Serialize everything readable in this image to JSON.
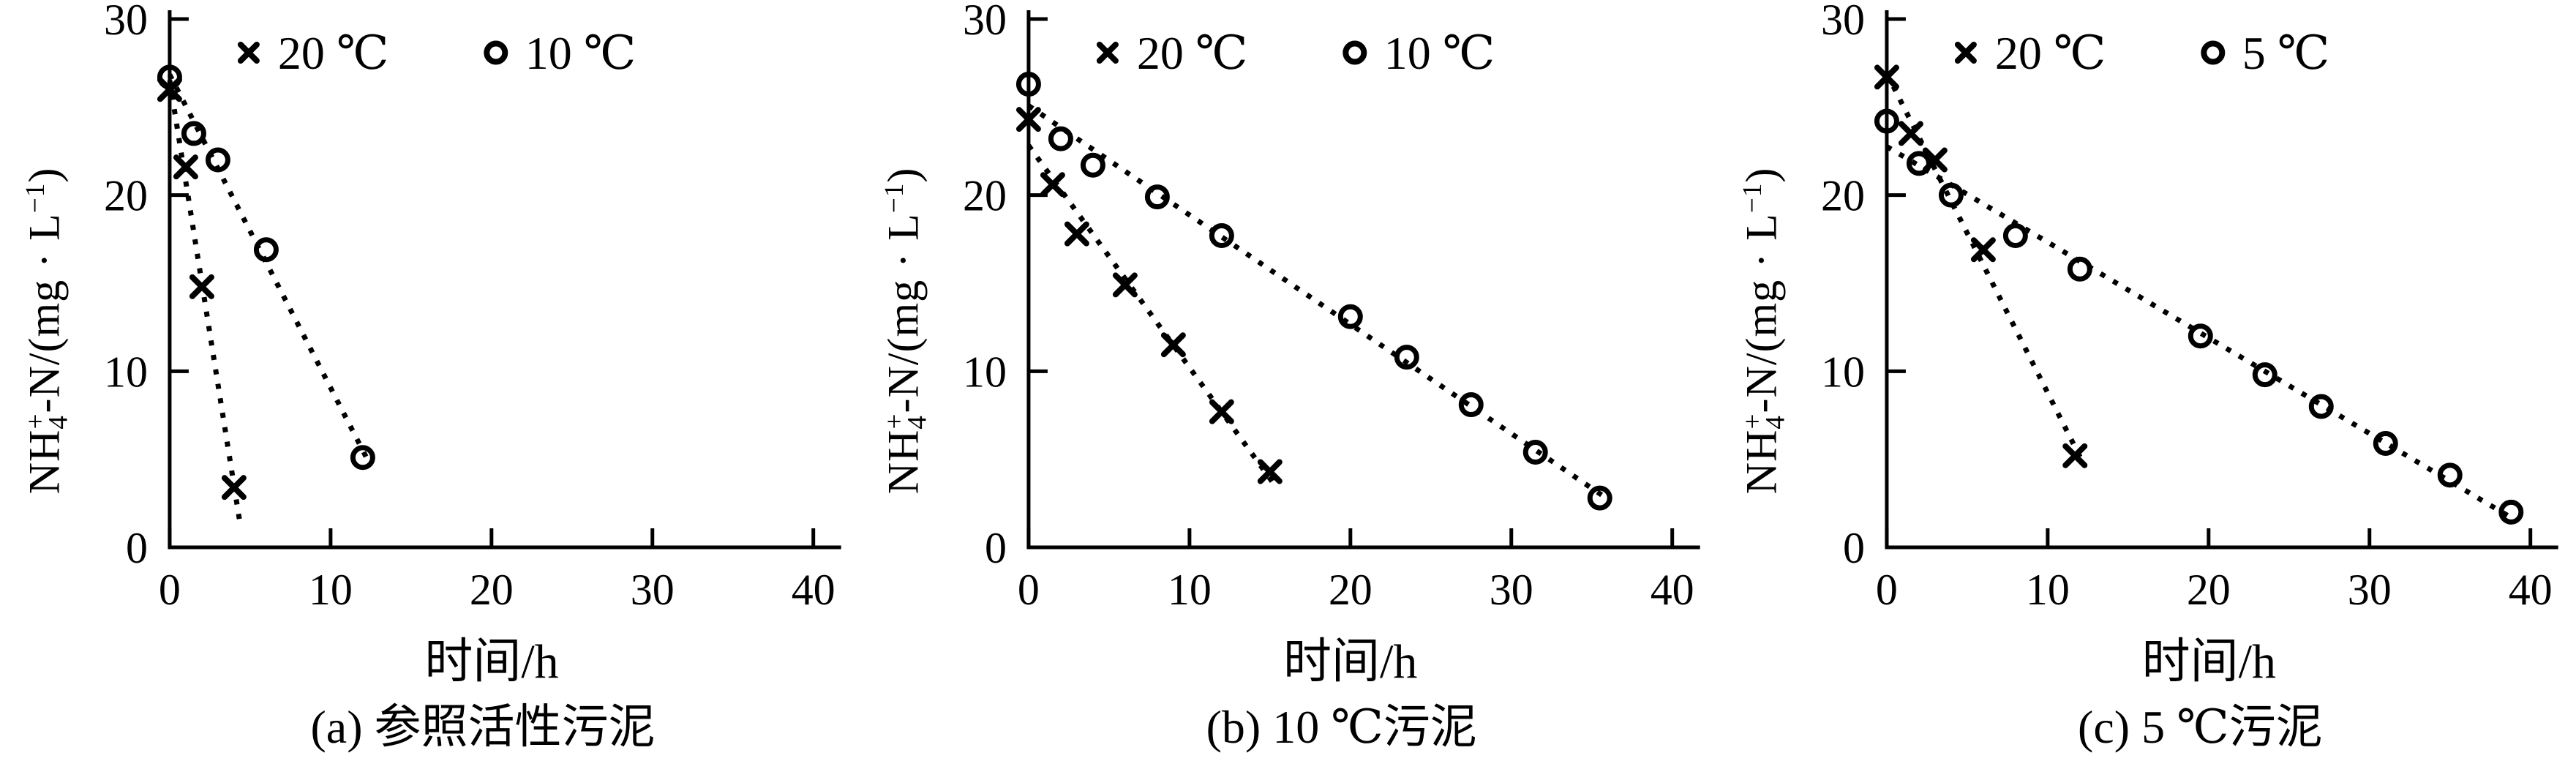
{
  "figure": {
    "background": "#ffffff",
    "ink": "#000000",
    "x_axis_title": "时间/h",
    "y_axis_title_plain": "NH4+-N/(mg·L-1)",
    "ylabel_parts": {
      "base": "NH",
      "sub4": "4",
      "plus": "+",
      "mid": "-N/(mg · L",
      "sup_exp": "−1",
      "close": ")"
    }
  },
  "chart_data": [
    {
      "type": "scatter",
      "caption": "(a) 参照活性污泥",
      "xlabel": "时间/h",
      "ylabel": "NH4+-N/(mg·L-1)",
      "xlim": [
        0,
        40
      ],
      "ylim": [
        0,
        30
      ],
      "xticks": [
        0,
        10,
        20,
        30,
        40
      ],
      "yticks": [
        0,
        10,
        20,
        30
      ],
      "grid": false,
      "legend_position": "top-inside",
      "trendline": "dotted-linear-fit",
      "series": [
        {
          "name": "20 ℃",
          "marker": "x",
          "points": [
            [
              0,
              26.0
            ],
            [
              1,
              21.6
            ],
            [
              2,
              14.8
            ],
            [
              4,
              3.4
            ]
          ]
        },
        {
          "name": "10 ℃",
          "marker": "o",
          "points": [
            [
              0,
              26.7
            ],
            [
              1.5,
              23.5
            ],
            [
              3,
              22.0
            ],
            [
              6,
              16.9
            ],
            [
              12,
              5.1
            ]
          ]
        }
      ]
    },
    {
      "type": "scatter",
      "caption": "(b) 10 ℃污泥",
      "xlabel": "时间/h",
      "ylabel": "NH4+-N/(mg·L-1)",
      "xlim": [
        0,
        40
      ],
      "ylim": [
        0,
        30
      ],
      "xticks": [
        0,
        10,
        20,
        30,
        40
      ],
      "yticks": [
        0,
        10,
        20,
        30
      ],
      "grid": false,
      "legend_position": "top-inside",
      "trendline": "dotted-linear-fit",
      "series": [
        {
          "name": "20 ℃",
          "marker": "x",
          "points": [
            [
              0,
              24.3
            ],
            [
              1.5,
              20.6
            ],
            [
              3,
              17.8
            ],
            [
              6,
              14.9
            ],
            [
              9,
              11.5
            ],
            [
              12,
              7.7
            ],
            [
              15,
              4.3
            ]
          ]
        },
        {
          "name": "10 ℃",
          "marker": "o",
          "points": [
            [
              0,
              26.3
            ],
            [
              2,
              23.2
            ],
            [
              4,
              21.7
            ],
            [
              8,
              19.9
            ],
            [
              12,
              17.7
            ],
            [
              20,
              13.1
            ],
            [
              23.5,
              10.8
            ],
            [
              27.5,
              8.1
            ],
            [
              31.5,
              5.4
            ],
            [
              35.5,
              2.8
            ]
          ]
        }
      ]
    },
    {
      "type": "scatter",
      "caption": "(c) 5 ℃污泥",
      "xlabel": "时间/h",
      "ylabel": "NH4+-N/(mg·L-1)",
      "xlim": [
        0,
        40
      ],
      "ylim": [
        0,
        30
      ],
      "xticks": [
        0,
        10,
        20,
        30,
        40
      ],
      "yticks": [
        0,
        10,
        20,
        30
      ],
      "grid": false,
      "legend_position": "top-inside",
      "trendline": "dotted-linear-fit",
      "series": [
        {
          "name": "20 ℃",
          "marker": "x",
          "points": [
            [
              0,
              26.7
            ],
            [
              1.5,
              23.5
            ],
            [
              3,
              22.0
            ],
            [
              6,
              16.9
            ],
            [
              11.7,
              5.2
            ]
          ]
        },
        {
          "name": "5 ℃",
          "marker": "o",
          "points": [
            [
              0,
              24.2
            ],
            [
              2,
              21.8
            ],
            [
              4,
              20.0
            ],
            [
              8,
              17.7
            ],
            [
              12,
              15.8
            ],
            [
              19.5,
              12.0
            ],
            [
              23.5,
              9.8
            ],
            [
              27,
              8.0
            ],
            [
              31,
              5.9
            ],
            [
              35,
              4.1
            ],
            [
              38.8,
              2.0
            ]
          ]
        }
      ]
    }
  ]
}
